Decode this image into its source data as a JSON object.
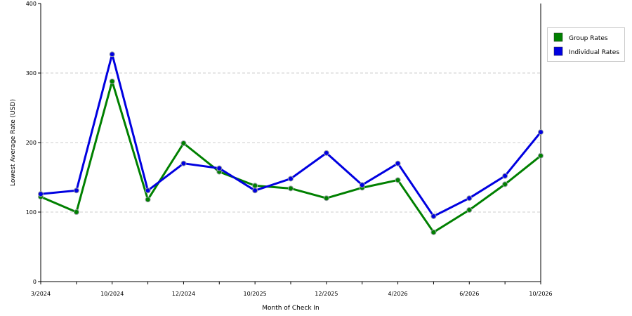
{
  "chart_data": {
    "type": "line",
    "title": "",
    "xlabel": "Month of Check In",
    "ylabel": "Lowest Average Rate (USD)",
    "ylim": [
      0,
      400
    ],
    "y_ticks": [
      "0",
      "100",
      "200",
      "300",
      "400"
    ],
    "x_tick_labels": [
      "3/2024",
      "10/2024",
      "12/2024",
      "10/2025",
      "12/2025",
      "4/2026",
      "6/2026",
      "10/2026"
    ],
    "grid": true,
    "legend_position": "right",
    "series": [
      {
        "name": "Group Rates",
        "color": "#008000",
        "values": [
          122,
          100,
          288,
          118,
          199,
          158,
          138,
          134,
          120,
          135,
          146,
          71,
          103,
          140,
          181
        ]
      },
      {
        "name": "Individual Rates",
        "color": "#0000e0",
        "values": [
          126,
          131,
          327,
          131,
          170,
          163,
          131,
          148,
          185,
          139,
          170,
          94,
          120,
          152,
          215
        ]
      }
    ]
  }
}
